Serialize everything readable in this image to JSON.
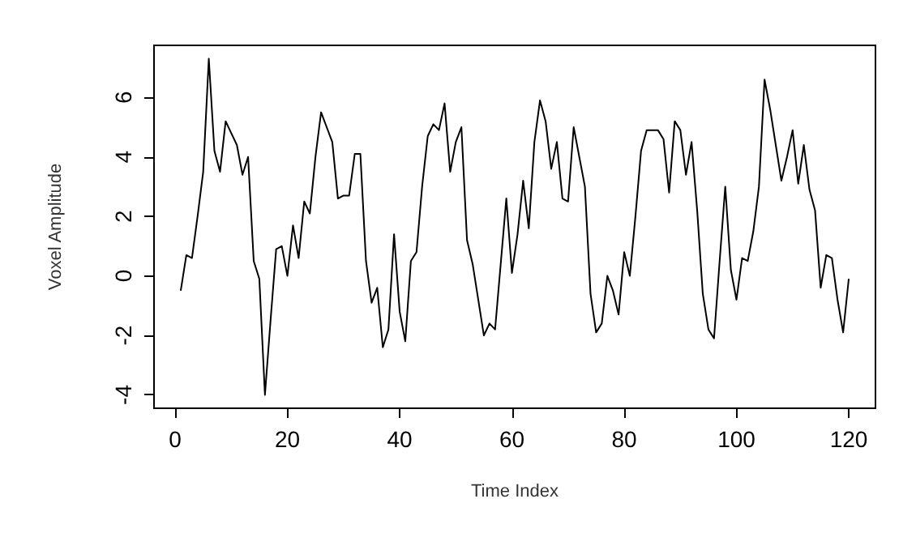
{
  "chart_data": {
    "type": "line",
    "xlabel": "Time Index",
    "ylabel": "Voxel Amplitude",
    "x": [
      1,
      2,
      3,
      4,
      5,
      6,
      7,
      8,
      9,
      10,
      11,
      12,
      13,
      14,
      15,
      16,
      17,
      18,
      19,
      20,
      21,
      22,
      23,
      24,
      25,
      26,
      27,
      28,
      29,
      30,
      31,
      32,
      33,
      34,
      35,
      36,
      37,
      38,
      39,
      40,
      41,
      42,
      43,
      44,
      45,
      46,
      47,
      48,
      49,
      50,
      51,
      52,
      53,
      54,
      55,
      56,
      57,
      58,
      59,
      60,
      61,
      62,
      63,
      64,
      65,
      66,
      67,
      68,
      69,
      70,
      71,
      72,
      73,
      74,
      75,
      76,
      77,
      78,
      79,
      80,
      81,
      82,
      83,
      84,
      85,
      86,
      87,
      88,
      89,
      90,
      91,
      92,
      93,
      94,
      95,
      96,
      97,
      98,
      99,
      100,
      101,
      102,
      103,
      104,
      105,
      106,
      107,
      108,
      109,
      110,
      111,
      112,
      113,
      114,
      115,
      116,
      117,
      118,
      119,
      120
    ],
    "series": [
      {
        "color": "#000000",
        "values": [
          -0.5,
          0.7,
          0.6,
          2,
          3.5,
          7.3,
          4.2,
          3.5,
          5.2,
          4.8,
          4.4,
          3.4,
          4,
          0.5,
          -0.1,
          -4,
          -1.5,
          0.9,
          1,
          0,
          1.7,
          0.6,
          2.5,
          2.1,
          4,
          5.5,
          5,
          4.5,
          2.6,
          2.7,
          2.7,
          4.1,
          4.1,
          0.5,
          -0.9,
          -0.4,
          -2.4,
          -1.8,
          1.4,
          -1.2,
          -2.2,
          0.5,
          0.8,
          3,
          4.7,
          5.1,
          4.9,
          5.8,
          3.5,
          4.5,
          5,
          1.2,
          0.4,
          -0.8,
          -2,
          -1.6,
          -1.8,
          0.4,
          2.6,
          0.1,
          1.4,
          3.2,
          1.6,
          4.5,
          5.9,
          5.2,
          3.6,
          4.5,
          2.6,
          2.5,
          5,
          4,
          3,
          -0.6,
          -1.9,
          -1.6,
          0,
          -0.5,
          -1.3,
          0.8,
          0,
          2,
          4.2,
          4.9,
          4.9,
          4.9,
          4.6,
          2.8,
          5.2,
          4.9,
          3.4,
          4.5,
          2.2,
          -0.6,
          -1.8,
          -2.1,
          0.5,
          3,
          0.2,
          -0.8,
          0.6,
          0.5,
          1.5,
          3,
          6.6,
          5.6,
          4.4,
          3.2,
          4,
          4.9,
          3.1,
          4.4,
          2.9,
          2.2,
          -0.4,
          0.7,
          0.6,
          -0.8,
          -1.9,
          -0.1
        ]
      }
    ],
    "xlim": [
      -3.76,
      124.76
    ],
    "ylim": [
      -4.45,
      7.75
    ],
    "xticks": [
      0,
      20,
      40,
      60,
      80,
      100,
      120
    ],
    "yticks": [
      -4,
      -2,
      0,
      2,
      4,
      6
    ],
    "grid": false,
    "marker": "none",
    "line_style": "solid"
  }
}
